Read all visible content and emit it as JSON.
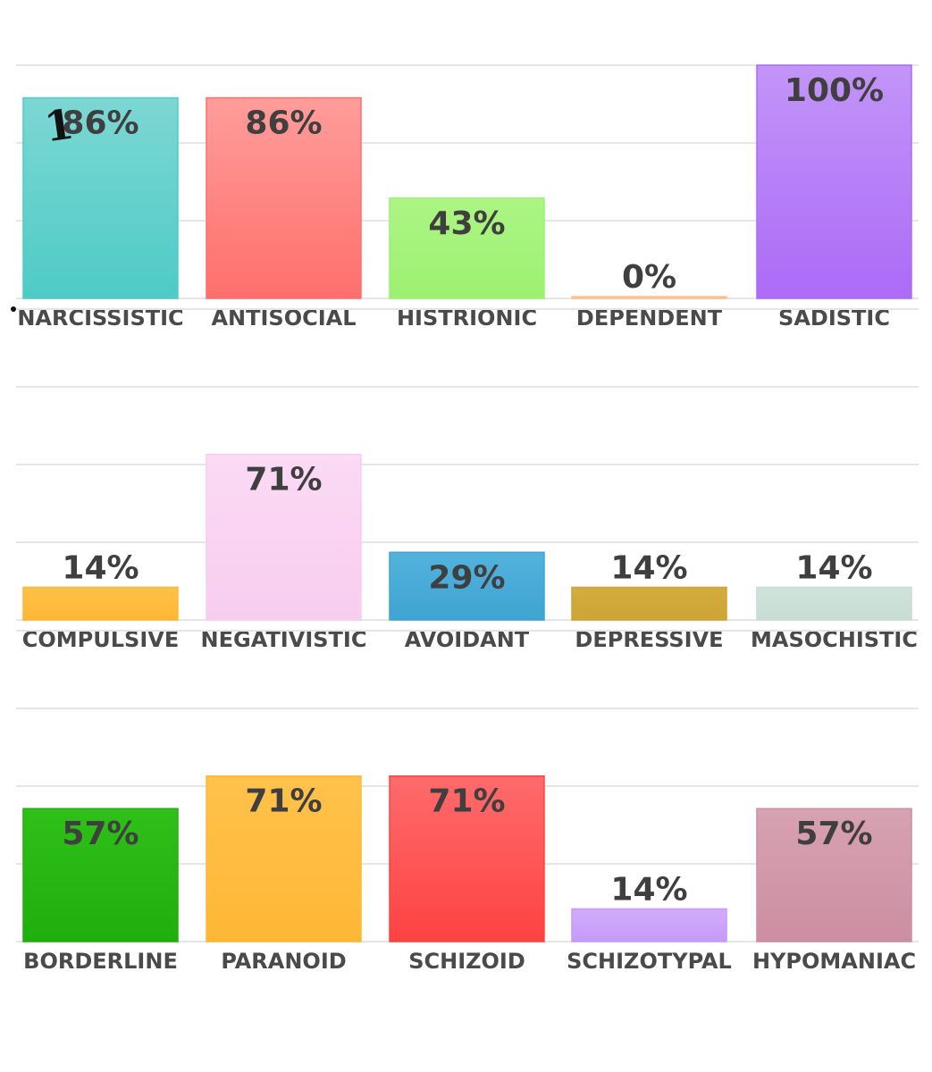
{
  "chart_data": [
    {
      "type": "bar",
      "ylim": [
        0,
        100
      ],
      "grid": true,
      "categories": [
        "NARCISSISTIC",
        "ANTISOCIAL",
        "HISTRIONIC",
        "DEPENDENT",
        "SADISTIC"
      ],
      "values": [
        86,
        86,
        43,
        0,
        100
      ],
      "value_labels": [
        "86%",
        "86%",
        "43%",
        "0%",
        "100%"
      ],
      "colors": [
        [
          "#7dd7d3",
          "#4ecbc5"
        ],
        [
          "#ff9d9a",
          "#ff6f6c"
        ],
        [
          "#acf585",
          "#9cf170"
        ],
        [
          "#ffd2a6",
          "#ffc08c"
        ],
        [
          "#c295f8",
          "#ad6af7"
        ]
      ]
    },
    {
      "type": "bar",
      "ylim": [
        0,
        100
      ],
      "grid": true,
      "categories": [
        "COMPULSIVE",
        "NEGATIVISTIC",
        "AVOIDANT",
        "DEPRESSIVE",
        "MASOCHISTIC"
      ],
      "values": [
        14,
        71,
        29,
        14,
        14
      ],
      "value_labels": [
        "14%",
        "71%",
        "29%",
        "14%",
        "14%"
      ],
      "colors": [
        [
          "#ffc24a",
          "#ffb634"
        ],
        [
          "#fbdaf4",
          "#f8cdef"
        ],
        [
          "#52b2dc",
          "#3fa4d2"
        ],
        [
          "#d3ad40",
          "#cda435"
        ],
        [
          "#cfe3da",
          "#c7ddd3"
        ]
      ]
    },
    {
      "type": "bar",
      "ylim": [
        0,
        100
      ],
      "grid": true,
      "categories": [
        "BORDERLINE",
        "PARANOID",
        "SCHIZOID",
        "SCHIZOTYPAL",
        "HYPOMANIAC"
      ],
      "values": [
        57,
        71,
        71,
        14,
        57
      ],
      "value_labels": [
        "57%",
        "71%",
        "71%",
        "14%",
        "57%"
      ],
      "colors": [
        [
          "#2fc019",
          "#20ae0d"
        ],
        [
          "#ffc24c",
          "#ffb734"
        ],
        [
          "#ff6b6b",
          "#ff4242"
        ],
        [
          "#d2acfb",
          "#c59af9"
        ],
        [
          "#d7a2b2",
          "#cc8ea2"
        ]
      ]
    }
  ],
  "annotations": {
    "handwritten_mark": "1"
  }
}
